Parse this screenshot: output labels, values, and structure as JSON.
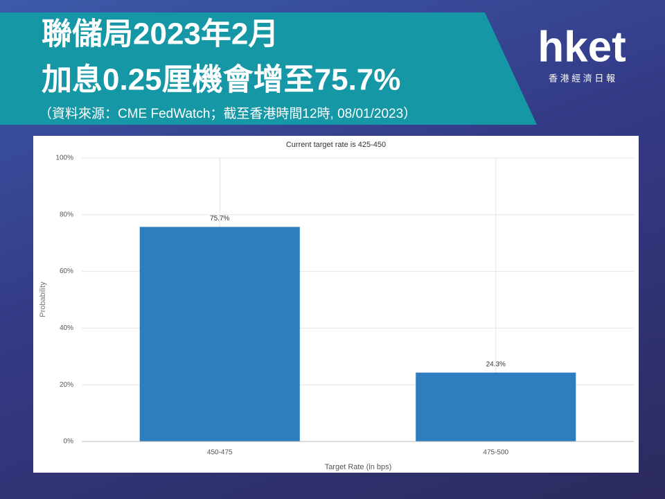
{
  "header": {
    "title_line1": "聯儲局2023年2月",
    "title_line2": "加息0.25厘機會增至75.7%",
    "source": "（資料來源：CME FedWatch；截至香港時間12時, 08/01/2023）"
  },
  "logo": {
    "brand": "hket",
    "tagline": "香 港 經 濟 日 報"
  },
  "chart_data": {
    "type": "bar",
    "title": "Current target rate is 425-450",
    "categories": [
      "450-475",
      "475-500"
    ],
    "values": [
      75.7,
      24.3
    ],
    "value_labels": [
      "75.7%",
      "24.3%"
    ],
    "color": "#2e7ebf",
    "xlabel": "Target Rate (in bps)",
    "ylabel": "Probability",
    "ylim": [
      0,
      100
    ],
    "yticks": [
      {
        "value": 0,
        "label": "0%"
      },
      {
        "value": 20,
        "label": "20%"
      },
      {
        "value": 40,
        "label": "40%"
      },
      {
        "value": 60,
        "label": "60%"
      },
      {
        "value": 80,
        "label": "80%"
      },
      {
        "value": 100,
        "label": "100%"
      }
    ],
    "grid": true
  }
}
